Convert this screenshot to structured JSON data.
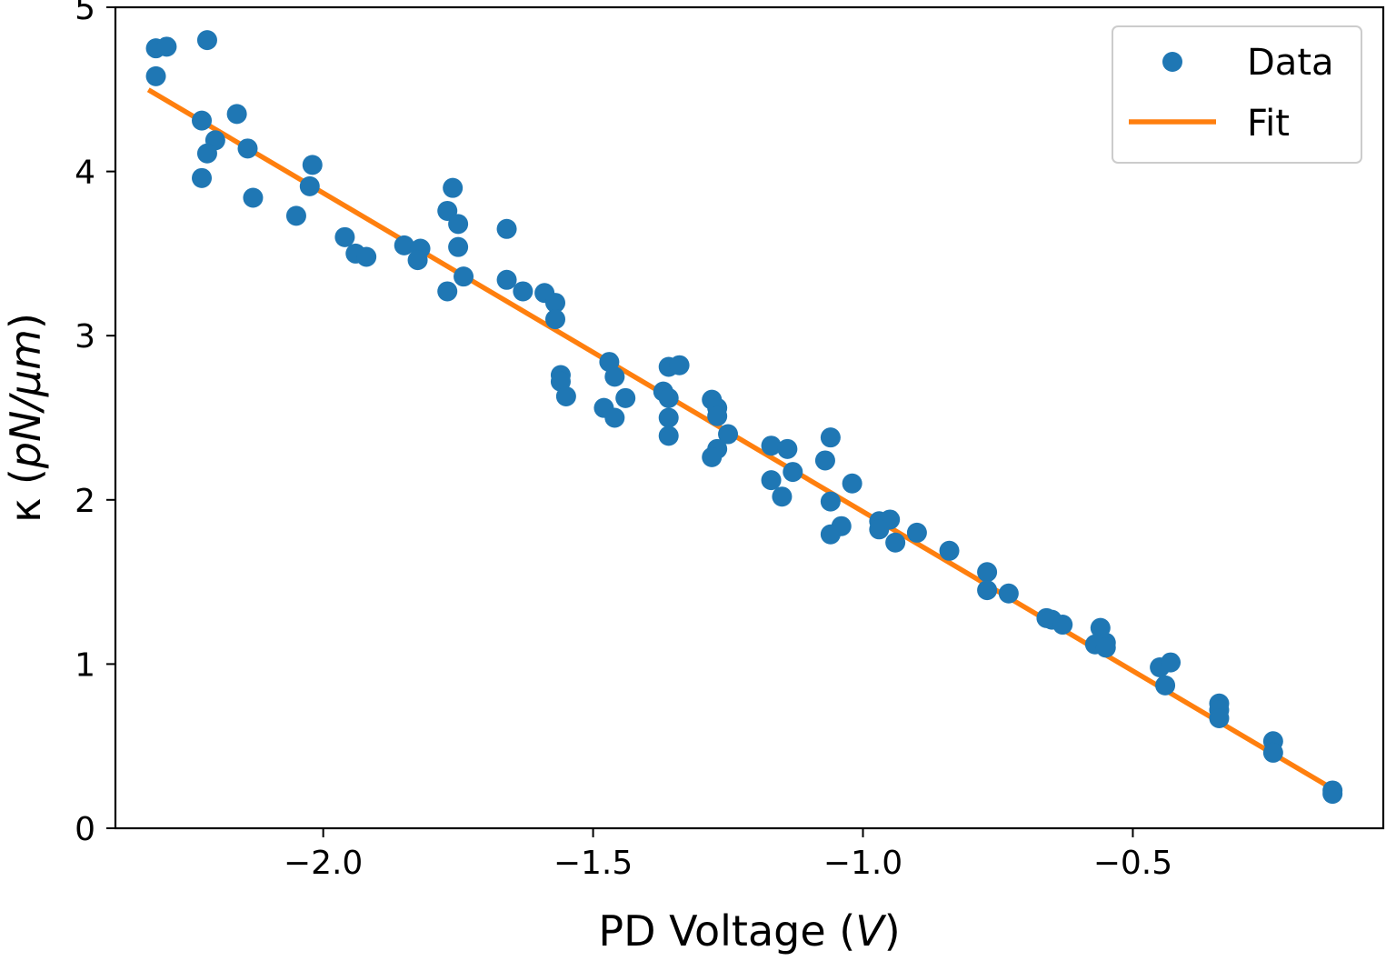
{
  "chart_data": {
    "type": "scatter",
    "title": "",
    "xlabel": "PD Voltage (V)",
    "xlabel_parts": {
      "prefix": "PD Voltage (",
      "italic": "V",
      "suffix": ")"
    },
    "ylabel": "κ (pN/μm)",
    "ylabel_parts": {
      "prefix": "κ (",
      "italic": "pN/μm",
      "suffix": ")"
    },
    "xlim": [
      -2.385,
      -0.036
    ],
    "ylim": [
      0,
      5
    ],
    "x_ticks": [
      -2.0,
      -1.5,
      -1.0,
      -0.5
    ],
    "x_tick_labels": [
      "−2.0",
      "−1.5",
      "−1.0",
      "−0.5"
    ],
    "y_ticks": [
      0,
      1,
      2,
      3,
      4,
      5
    ],
    "y_tick_labels": [
      "0",
      "1",
      "2",
      "3",
      "4",
      "5"
    ],
    "grid": false,
    "legend_position": "top-right",
    "series": [
      {
        "name": "Data",
        "kind": "scatter",
        "color": "#1f77b4",
        "points": [
          [
            -2.31,
            4.75
          ],
          [
            -2.29,
            4.76
          ],
          [
            -2.31,
            4.58
          ],
          [
            -2.215,
            4.8
          ],
          [
            -2.225,
            4.31
          ],
          [
            -2.16,
            4.35
          ],
          [
            -2.2,
            4.19
          ],
          [
            -2.215,
            4.11
          ],
          [
            -2.225,
            3.96
          ],
          [
            -2.14,
            4.14
          ],
          [
            -2.13,
            3.84
          ],
          [
            -2.02,
            4.04
          ],
          [
            -2.025,
            3.91
          ],
          [
            -2.05,
            3.73
          ],
          [
            -1.96,
            3.6
          ],
          [
            -1.94,
            3.5
          ],
          [
            -1.92,
            3.48
          ],
          [
            -1.85,
            3.55
          ],
          [
            -1.82,
            3.53
          ],
          [
            -1.825,
            3.46
          ],
          [
            -1.76,
            3.9
          ],
          [
            -1.77,
            3.76
          ],
          [
            -1.75,
            3.68
          ],
          [
            -1.75,
            3.54
          ],
          [
            -1.74,
            3.36
          ],
          [
            -1.77,
            3.27
          ],
          [
            -1.66,
            3.65
          ],
          [
            -1.66,
            3.34
          ],
          [
            -1.63,
            3.27
          ],
          [
            -1.59,
            3.26
          ],
          [
            -1.57,
            3.2
          ],
          [
            -1.57,
            3.1
          ],
          [
            -1.56,
            2.76
          ],
          [
            -1.56,
            2.72
          ],
          [
            -1.55,
            2.63
          ],
          [
            -1.47,
            2.84
          ],
          [
            -1.46,
            2.75
          ],
          [
            -1.44,
            2.62
          ],
          [
            -1.48,
            2.56
          ],
          [
            -1.46,
            2.5
          ],
          [
            -1.36,
            2.81
          ],
          [
            -1.34,
            2.82
          ],
          [
            -1.37,
            2.66
          ],
          [
            -1.36,
            2.62
          ],
          [
            -1.36,
            2.5
          ],
          [
            -1.36,
            2.39
          ],
          [
            -1.28,
            2.61
          ],
          [
            -1.27,
            2.56
          ],
          [
            -1.27,
            2.51
          ],
          [
            -1.25,
            2.4
          ],
          [
            -1.27,
            2.31
          ],
          [
            -1.28,
            2.26
          ],
          [
            -1.17,
            2.33
          ],
          [
            -1.14,
            2.31
          ],
          [
            -1.13,
            2.17
          ],
          [
            -1.17,
            2.12
          ],
          [
            -1.15,
            2.02
          ],
          [
            -1.06,
            2.38
          ],
          [
            -1.07,
            2.24
          ],
          [
            -1.02,
            2.1
          ],
          [
            -1.06,
            1.99
          ],
          [
            -1.04,
            1.84
          ],
          [
            -1.06,
            1.79
          ],
          [
            -0.97,
            1.87
          ],
          [
            -0.95,
            1.88
          ],
          [
            -0.97,
            1.82
          ],
          [
            -0.9,
            1.8
          ],
          [
            -0.94,
            1.74
          ],
          [
            -0.84,
            1.69
          ],
          [
            -0.77,
            1.56
          ],
          [
            -0.73,
            1.43
          ],
          [
            -0.77,
            1.45
          ],
          [
            -0.66,
            1.28
          ],
          [
            -0.65,
            1.27
          ],
          [
            -0.63,
            1.24
          ],
          [
            -0.56,
            1.22
          ],
          [
            -0.55,
            1.13
          ],
          [
            -0.57,
            1.12
          ],
          [
            -0.55,
            1.1
          ],
          [
            -0.45,
            0.98
          ],
          [
            -0.43,
            1.01
          ],
          [
            -0.44,
            0.87
          ],
          [
            -0.34,
            0.76
          ],
          [
            -0.34,
            0.72
          ],
          [
            -0.34,
            0.67
          ],
          [
            -0.24,
            0.53
          ],
          [
            -0.24,
            0.46
          ],
          [
            -0.13,
            0.23
          ],
          [
            -0.13,
            0.21
          ]
        ]
      },
      {
        "name": "Fit",
        "kind": "line",
        "color": "#ff7f0e",
        "points": [
          [
            -2.32,
            4.49
          ],
          [
            -0.13,
            0.24
          ]
        ]
      }
    ]
  }
}
